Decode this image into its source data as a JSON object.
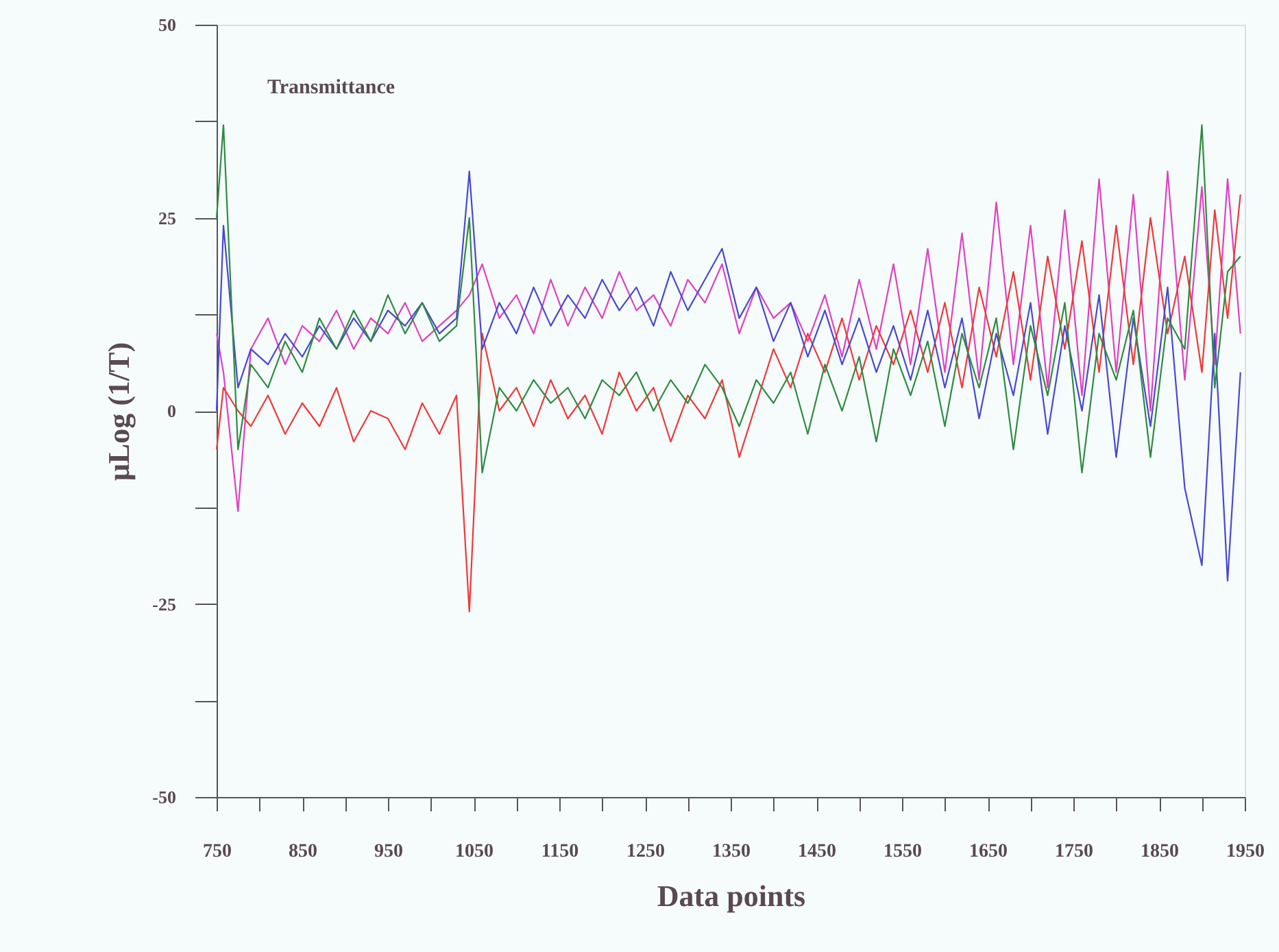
{
  "chart_data": {
    "type": "line",
    "xlabel": "Data points",
    "ylabel": "μLog (1/T)",
    "annotations": [
      "Transmittance"
    ],
    "xlim": [
      750,
      1950
    ],
    "ylim": [
      -50,
      50
    ],
    "xticks": [
      750,
      {
        "value": 800,
        "label": null
      },
      850,
      {
        "value": 900,
        "label": null
      },
      950,
      {
        "value": 1000,
        "label": null
      },
      1050,
      {
        "value": 1100,
        "label": null
      },
      1150,
      {
        "value": 1200,
        "label": null
      },
      1250,
      {
        "value": 1300,
        "label": null
      },
      1350,
      {
        "value": 1400,
        "label": null
      },
      1450,
      {
        "value": 1500,
        "label": null
      },
      1550,
      {
        "value": 1600,
        "label": null
      },
      1650,
      {
        "value": 1700,
        "label": null
      },
      1750,
      {
        "value": 1800,
        "label": null
      },
      1850,
      {
        "value": 1900,
        "label": null
      },
      1950
    ],
    "yticks": [
      -50,
      {
        "value": -37.5,
        "label": null
      },
      -25,
      {
        "value": -12.5,
        "label": null
      },
      0,
      {
        "value": 12.5,
        "label": null
      },
      25,
      {
        "value": 37.5,
        "label": null
      },
      50
    ],
    "grid": false,
    "marker": "none",
    "line_style": "solid",
    "x": [
      750,
      758,
      775,
      790,
      810,
      830,
      850,
      870,
      890,
      910,
      930,
      950,
      970,
      990,
      1010,
      1030,
      1045,
      1060,
      1080,
      1100,
      1120,
      1140,
      1160,
      1180,
      1200,
      1220,
      1240,
      1260,
      1280,
      1300,
      1320,
      1340,
      1360,
      1380,
      1400,
      1420,
      1440,
      1460,
      1480,
      1500,
      1520,
      1540,
      1560,
      1580,
      1600,
      1620,
      1640,
      1660,
      1680,
      1700,
      1720,
      1740,
      1760,
      1780,
      1800,
      1820,
      1840,
      1860,
      1880,
      1900,
      1915,
      1930,
      1945
    ],
    "series": [
      {
        "color": "#e040c0",
        "values": [
          10,
          5,
          -13,
          8,
          12,
          6,
          11,
          9,
          13,
          8,
          12,
          10,
          14,
          9,
          11,
          13,
          15,
          19,
          12,
          15,
          10,
          17,
          11,
          16,
          12,
          18,
          13,
          15,
          11,
          17,
          14,
          19,
          10,
          16,
          12,
          14,
          9,
          15,
          7,
          17,
          8,
          19,
          6,
          21,
          5,
          23,
          4,
          27,
          6,
          24,
          3,
          26,
          2,
          30,
          5,
          28,
          0,
          31,
          4,
          29,
          6,
          30,
          10
        ]
      },
      {
        "color": "#f03838",
        "values": [
          -5,
          3,
          0,
          -2,
          2,
          -3,
          1,
          -2,
          3,
          -4,
          0,
          -1,
          -5,
          1,
          -3,
          2,
          -26,
          10,
          0,
          3,
          -2,
          4,
          -1,
          2,
          -3,
          5,
          0,
          3,
          -4,
          2,
          -1,
          4,
          -6,
          1,
          8,
          3,
          10,
          5,
          12,
          4,
          11,
          6,
          13,
          5,
          14,
          3,
          16,
          7,
          18,
          4,
          20,
          8,
          22,
          5,
          24,
          6,
          25,
          10,
          20,
          5,
          26,
          12,
          28
        ]
      },
      {
        "color": "#4848d0",
        "values": [
          0,
          24,
          3,
          8,
          6,
          10,
          7,
          11,
          8,
          12,
          9,
          13,
          11,
          14,
          10,
          12,
          31,
          8,
          14,
          10,
          16,
          11,
          15,
          12,
          17,
          13,
          16,
          11,
          18,
          13,
          17,
          21,
          12,
          16,
          9,
          14,
          7,
          13,
          6,
          12,
          5,
          11,
          4,
          13,
          3,
          12,
          -1,
          10,
          2,
          14,
          -3,
          11,
          0,
          15,
          -6,
          12,
          -2,
          16,
          -10,
          -20,
          10,
          -22,
          5
        ]
      },
      {
        "color": "#2e8b40",
        "values": [
          25,
          37,
          -5,
          6,
          3,
          9,
          5,
          12,
          8,
          13,
          9,
          15,
          10,
          14,
          9,
          11,
          25,
          -8,
          3,
          0,
          4,
          1,
          3,
          -1,
          4,
          2,
          5,
          0,
          4,
          1,
          6,
          3,
          -2,
          4,
          1,
          5,
          -3,
          6,
          0,
          7,
          -4,
          8,
          2,
          9,
          -2,
          10,
          3,
          12,
          -5,
          11,
          2,
          14,
          -8,
          10,
          4,
          13,
          -6,
          12,
          8,
          37,
          3,
          18,
          20
        ]
      }
    ]
  }
}
